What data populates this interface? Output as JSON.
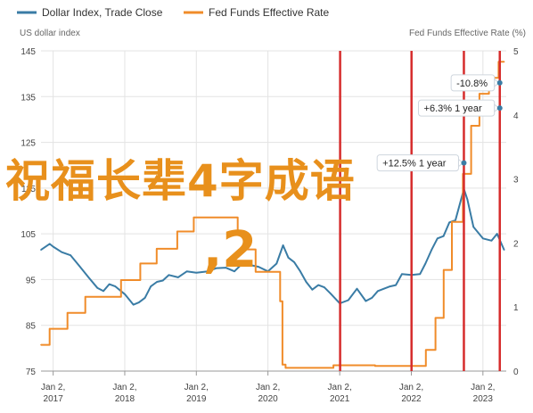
{
  "chart_data": {
    "type": "line",
    "x_tick_labels": [
      {
        "month": "Jan 2,",
        "year": "2017"
      },
      {
        "month": "Jan 2,",
        "year": "2018"
      },
      {
        "month": "Jan 2,",
        "year": "2019"
      },
      {
        "month": "Jan 2,",
        "year": "2020"
      },
      {
        "month": "Jan 2,",
        "year": "2021"
      },
      {
        "month": "Jan 2,",
        "year": "2022"
      },
      {
        "month": "Jan 2,",
        "year": "2023"
      }
    ],
    "xlim": [
      "2016-11-01",
      "2023-05-01"
    ],
    "left_axis": {
      "label": "US dollar index",
      "ylim": [
        75,
        145
      ],
      "ticks": [
        75,
        85,
        95,
        105,
        115,
        125,
        135,
        145
      ]
    },
    "right_axis": {
      "label": "Fed Funds Effective Rate (%)",
      "ylim": [
        0,
        5
      ],
      "ticks": [
        0,
        1,
        2,
        3,
        4,
        5
      ]
    },
    "grid": true,
    "legend_position": "top-left",
    "series": [
      {
        "name": "Dollar Index, Trade Close",
        "color": "#3a7ca5",
        "axis": "left",
        "points": [
          [
            "2016-11-01",
            101.5
          ],
          [
            "2016-12-15",
            102.8
          ],
          [
            "2017-01-02",
            102.2
          ],
          [
            "2017-02-15",
            101.0
          ],
          [
            "2017-04-01",
            100.3
          ],
          [
            "2017-05-15",
            98.0
          ],
          [
            "2017-07-01",
            95.5
          ],
          [
            "2017-08-15",
            93.2
          ],
          [
            "2017-09-15",
            92.5
          ],
          [
            "2017-10-15",
            94.0
          ],
          [
            "2017-11-15",
            93.5
          ],
          [
            "2018-01-02",
            91.8
          ],
          [
            "2018-02-15",
            89.5
          ],
          [
            "2018-03-15",
            90.0
          ],
          [
            "2018-04-15",
            91.0
          ],
          [
            "2018-05-15",
            93.5
          ],
          [
            "2018-06-15",
            94.5
          ],
          [
            "2018-07-15",
            94.8
          ],
          [
            "2018-08-15",
            96.0
          ],
          [
            "2018-10-01",
            95.5
          ],
          [
            "2018-11-15",
            96.8
          ],
          [
            "2019-01-02",
            96.5
          ],
          [
            "2019-03-01",
            96.8
          ],
          [
            "2019-04-15",
            97.5
          ],
          [
            "2019-06-01",
            97.6
          ],
          [
            "2019-07-15",
            96.8
          ],
          [
            "2019-09-01",
            98.8
          ],
          [
            "2019-10-01",
            98.2
          ],
          [
            "2019-11-15",
            97.8
          ],
          [
            "2020-01-02",
            96.8
          ],
          [
            "2020-02-15",
            98.5
          ],
          [
            "2020-03-19",
            102.5
          ],
          [
            "2020-04-15",
            99.8
          ],
          [
            "2020-05-15",
            98.8
          ],
          [
            "2020-06-15",
            96.8
          ],
          [
            "2020-07-15",
            94.5
          ],
          [
            "2020-08-15",
            92.8
          ],
          [
            "2020-09-15",
            93.8
          ],
          [
            "2020-10-15",
            93.3
          ],
          [
            "2020-11-15",
            92.0
          ],
          [
            "2021-01-02",
            89.8
          ],
          [
            "2021-02-15",
            90.5
          ],
          [
            "2021-03-31",
            93.0
          ],
          [
            "2021-05-15",
            90.3
          ],
          [
            "2021-06-15",
            91.0
          ],
          [
            "2021-07-15",
            92.5
          ],
          [
            "2021-08-15",
            93.0
          ],
          [
            "2021-09-15",
            93.5
          ],
          [
            "2021-10-15",
            93.8
          ],
          [
            "2021-11-15",
            96.2
          ],
          [
            "2022-01-02",
            96.0
          ],
          [
            "2022-02-15",
            96.2
          ],
          [
            "2022-03-15",
            98.5
          ],
          [
            "2022-04-15",
            101.5
          ],
          [
            "2022-05-15",
            104.0
          ],
          [
            "2022-06-15",
            104.5
          ],
          [
            "2022-07-15",
            107.5
          ],
          [
            "2022-08-15",
            108.0
          ],
          [
            "2022-09-27",
            114.8
          ],
          [
            "2022-10-15",
            112.5
          ],
          [
            "2022-11-15",
            106.5
          ],
          [
            "2023-01-02",
            104.0
          ],
          [
            "2023-02-15",
            103.5
          ],
          [
            "2023-03-15",
            105.0
          ],
          [
            "2023-04-20",
            101.5
          ]
        ]
      },
      {
        "name": "Fed Funds Effective Rate",
        "color": "#f08c2a",
        "axis": "right",
        "step": true,
        "points": [
          [
            "2016-11-01",
            0.41
          ],
          [
            "2016-12-15",
            0.66
          ],
          [
            "2017-03-16",
            0.91
          ],
          [
            "2017-06-15",
            1.16
          ],
          [
            "2017-12-14",
            1.42
          ],
          [
            "2018-03-22",
            1.68
          ],
          [
            "2018-06-14",
            1.91
          ],
          [
            "2018-09-27",
            2.18
          ],
          [
            "2018-12-20",
            2.4
          ],
          [
            "2019-08-01",
            2.13
          ],
          [
            "2019-09-19",
            1.9
          ],
          [
            "2019-10-31",
            1.55
          ],
          [
            "2020-03-04",
            1.09
          ],
          [
            "2020-03-16",
            0.1
          ],
          [
            "2020-04-01",
            0.05
          ],
          [
            "2020-12-01",
            0.09
          ],
          [
            "2021-07-01",
            0.08
          ],
          [
            "2022-01-02",
            0.08
          ],
          [
            "2022-03-17",
            0.33
          ],
          [
            "2022-05-05",
            0.83
          ],
          [
            "2022-06-16",
            1.58
          ],
          [
            "2022-07-28",
            2.33
          ],
          [
            "2022-09-22",
            3.08
          ],
          [
            "2022-11-03",
            3.83
          ],
          [
            "2022-12-15",
            4.33
          ],
          [
            "2023-02-02",
            4.58
          ],
          [
            "2023-03-23",
            4.83
          ],
          [
            "2023-04-20",
            4.83
          ]
        ]
      }
    ],
    "vertical_markers": [
      {
        "x": "2021-01-04",
        "color": "#d62c2c"
      },
      {
        "x": "2022-01-03",
        "color": "#d62c2c"
      },
      {
        "x": "2022-09-27",
        "color": "#d62c2c"
      },
      {
        "x": "2023-03-29",
        "color": "#d62c2c"
      }
    ],
    "annotations": [
      {
        "text": "-10.8%",
        "series": "Dollar Index, Trade Close",
        "x": "2023-03-29",
        "axis": "left",
        "y": 138.0
      },
      {
        "text": "+6.3% 1 year",
        "series": "Dollar Index, Trade Close",
        "x": "2023-03-29",
        "axis": "left",
        "y": 132.5
      },
      {
        "text": "+12.5% 1 year",
        "series": "Dollar Index, Trade Close",
        "x": "2022-09-27",
        "axis": "left",
        "y": 120.5
      }
    ]
  },
  "watermark": {
    "line1": "祝福长辈4字成语",
    "line2": ",2"
  }
}
